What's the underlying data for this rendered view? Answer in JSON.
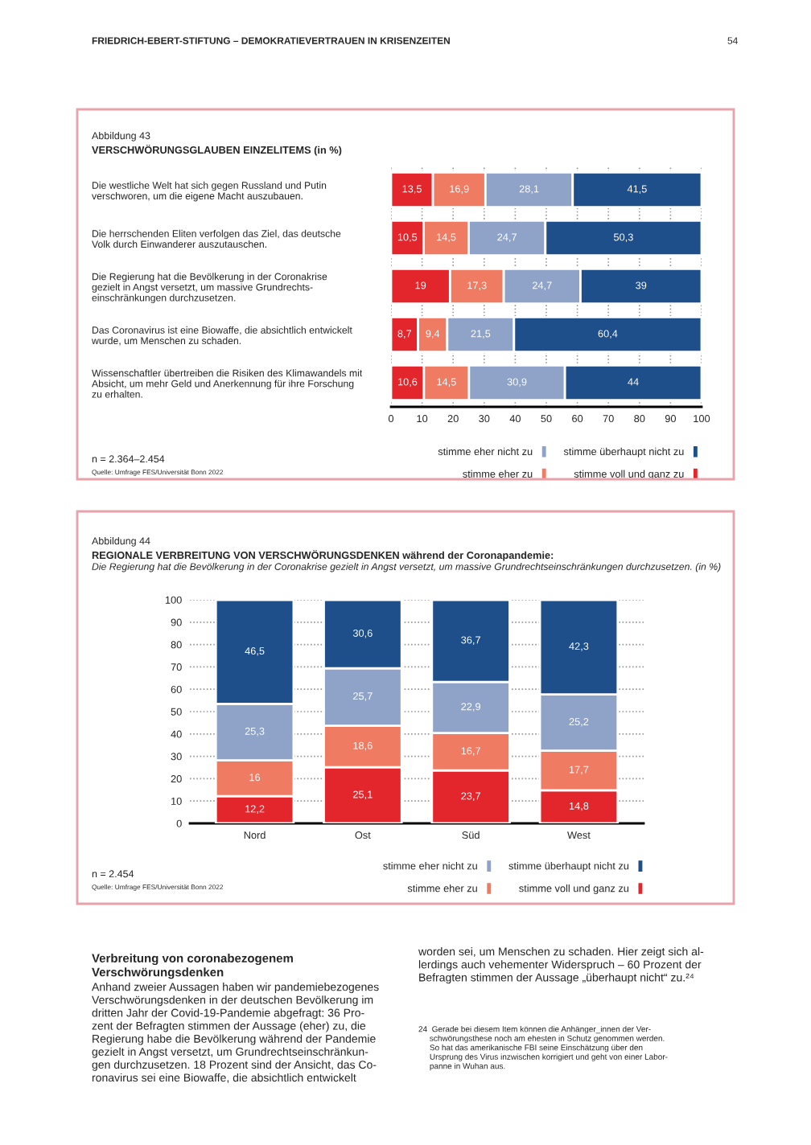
{
  "chart_data": [
    {
      "type": "bar",
      "orientation": "horizontal",
      "stacked": true,
      "title": "VERSCHWÖRUNGSGLAUBEN EINZELITEMS (in %)",
      "categories": [
        "Die westliche Welt hat sich gegen Russland und Putin\nverschworen, um die eigene Macht auszubauen.",
        "Die herrschenden Eliten verfolgen das Ziel, das deutsche\nVolk durch Einwanderer auszutauschen.",
        "Die Regierung hat die Bevölkerung in der Coronakrise\ngezielt in Angst versetzt, um massive Grundrechts-\neinschränkungen durchzusetzen.",
        "Das Coronavirus ist eine Biowaffe, die absichtlich entwickelt\nwurde, um Menschen zu schaden.",
        "Wissenschaftler übertreiben die Risiken des Klimawandels mit\nAbsicht, um mehr Geld und Anerkennung für ihre Forschung\nzu erhalten."
      ],
      "series": [
        {
          "name": "stimme voll und ganz zu",
          "color": "#e3262b",
          "values": [
            13.5,
            10.5,
            19,
            8.7,
            10.6
          ],
          "value_labels": [
            "13,5",
            "10,5",
            "19",
            "8,7",
            "10,6"
          ]
        },
        {
          "name": "stimme eher zu",
          "color": "#ef7b63",
          "values": [
            16.9,
            14.5,
            17.3,
            9.4,
            14.5
          ],
          "value_labels": [
            "16,9",
            "14,5",
            "17,3",
            "9,4",
            "14,5"
          ]
        },
        {
          "name": "stimme eher nicht zu",
          "color": "#8fa2c8",
          "values": [
            28.1,
            24.7,
            24.7,
            21.5,
            30.9
          ],
          "value_labels": [
            "28,1",
            "24,7",
            "24,7",
            "21,5",
            "30,9"
          ]
        },
        {
          "name": "stimme überhaupt nicht zu",
          "color": "#1f4f8b",
          "values": [
            41.5,
            50.3,
            39,
            60.4,
            44
          ],
          "value_labels": [
            "41,5",
            "50,3",
            "39",
            "60,4",
            "44"
          ]
        }
      ],
      "xlim": [
        0,
        100
      ],
      "xticks": [
        0,
        10,
        20,
        30,
        40,
        50,
        60,
        70,
        80,
        90,
        100
      ],
      "grid": "x",
      "legend": "bottom right",
      "annotations": [
        "FRIEDRICH-EBERT-STIFTUNG – DEMOKRATIEVERTRAUEN IN KRISENZEITEN",
        "54",
        "Abbildung 43",
        "n = 2.364–2.454",
        "Quelle: Umfrage FES/Universität Bonn 2022"
      ]
    },
    {
      "type": "bar",
      "stacked": true,
      "title": "REGIONALE VERBREITUNG VON VERSCHWÖRUNGSDENKEN während der Coronapandemie:",
      "subtitle": "Die Regierung hat die Bevölkerung in der Coronakrise gezielt in Angst versetzt, um massive Grundrechtseinschränkungen durchzusetzen. (in %)",
      "categories": [
        "Nord",
        "Ost",
        "Süd",
        "West"
      ],
      "series": [
        {
          "name": "stimme voll und ganz zu",
          "color": "#e3262b",
          "values": [
            12.2,
            25.1,
            23.7,
            14.8
          ],
          "value_labels": [
            "12,2",
            "25,1",
            "23,7",
            "14,8"
          ]
        },
        {
          "name": "stimme eher zu",
          "color": "#ef7b63",
          "values": [
            16,
            18.6,
            16.7,
            17.7
          ],
          "value_labels": [
            "16",
            "18,6",
            "16,7",
            "17,7"
          ]
        },
        {
          "name": "stimme eher nicht zu",
          "color": "#8fa2c8",
          "values": [
            25.3,
            25.7,
            22.9,
            25.2
          ],
          "value_labels": [
            "25,3",
            "25,7",
            "22,9",
            "25,2"
          ]
        },
        {
          "name": "stimme überhaupt nicht zu",
          "color": "#1f4f8b",
          "values": [
            46.5,
            30.6,
            36.7,
            42.3
          ],
          "value_labels": [
            "46,5",
            "30,6",
            "36,7",
            "42,3"
          ]
        }
      ],
      "ylim": [
        0,
        100
      ],
      "yticks": [
        0,
        10,
        20,
        30,
        40,
        50,
        60,
        70,
        80,
        90,
        100
      ],
      "grid": "y",
      "legend": "bottom right",
      "annotations": [
        "Abbildung 44",
        "n = 2.454",
        "Quelle: Umfrage FES/Universität Bonn 2022",
        "Verbreitung von coronabezogenem\nVerschwörungsdenken",
        "Anhand zweier Aussagen haben wir pandemiebezogenes\nVerschwörungsdenken in der deutschen Bevölkerung im\ndritten Jahr der Covid-19-Pandemie abgefragt: 36 Pro-\nzent der Befragten stimmen der Aussage (eher) zu, die\nRegierung habe die Bevölkerung während der Pandemie\ngezielt in Angst versetzt, um Grundrechtseinschränkun-\ngen durchzusetzen. 18 Prozent sind der Ansicht, das Co-\nronavirus sei eine Biowaffe, die absichtlich entwickelt",
        "worden sei, um Menschen zu schaden. Hier zeigt sich al-\nlerdings auch vehementer Widerspruch – 60 Prozent der\nBefragten stimmen der Aussage „überhaupt nicht“ zu.²⁴",
        "24  Gerade bei diesem Item können die Anhänger_innen der Ver-\n     schwörungsthese noch am ehesten in Schutz genommen werden.\n     So hat das amerikanische FBI seine Einschätzung über den\n     Ursprung des Virus inzwischen korrigiert und geht von einer Labor-\n     panne in Wuhan aus."
      ]
    }
  ]
}
